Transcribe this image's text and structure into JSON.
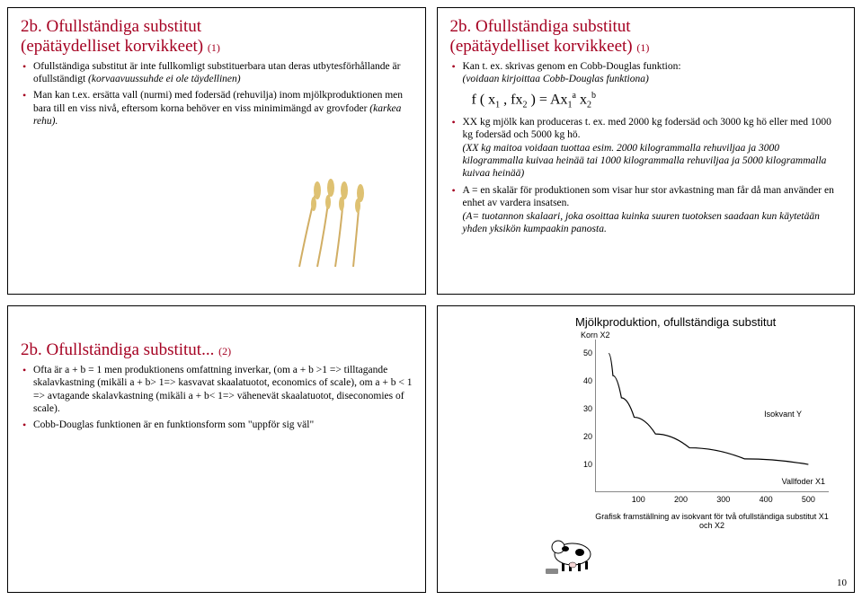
{
  "slide1": {
    "title_main": "2b. Ofullständiga substitut",
    "title_paren": "(epätäydelliset korvikkeet)",
    "title_num": "(1)",
    "b1": "Ofullständiga substitut är inte fullkomligt substituerbara utan deras utbytesförhållande är ofullständigt ",
    "b1_fi": "(korvaavuussuhde ei ole täydellinen)",
    "b2": "Man kan t.ex. ersätta vall (nurmi) med fodersäd (rehuvilja) inom mjölkproduktionen men bara till en viss nivå, eftersom korna behöver en viss minimimängd av grovfoder ",
    "b2_fi": "(karkea rehu)."
  },
  "slide2": {
    "title_main": "2b. Ofullständiga substitut",
    "title_paren": "(epätäydelliset korvikkeet)",
    "title_num": "(1)",
    "b1": "Kan t. ex. skrivas genom en Cobb-Douglas funktion:",
    "b1_fi": "(voidaan kirjoittaa Cobb-Douglas funktiona)",
    "formula_lhs": "f ( x",
    "formula_sub1": "1",
    "formula_mid": " , fx",
    "formula_sub2": "2",
    "formula_eq": " ) = Ax",
    "formula_supA": "a",
    "formula_subA": "1",
    "formula_x2": " x",
    "formula_supB": "b",
    "formula_subB": "2",
    "b2": "XX kg mjölk kan produceras t. ex. med 2000 kg fodersäd och 3000 kg hö eller med 1000 kg fodersäd och 5000 kg hö.",
    "b2_fi": "(XX kg maitoa voidaan tuottaa esim. 2000 kilogrammalla rehuviljaa ja 3000 kilogrammalla kuivaa heinää tai 1000 kilogrammalla rehuviljaa ja 5000 kilogrammalla kuivaa heinää)",
    "b3": "A = en skalär för produktionen som visar hur stor avkastning man får då man använder en enhet av vardera insatsen.",
    "b3_fi": "(A= tuotannon skalaari, joka osoittaa kuinka suuren tuotoksen saadaan kun käytetään yhden yksikön kumpaakin panosta."
  },
  "slide3": {
    "title_main": "2b. Ofullständiga substitut...",
    "title_num": "(2)",
    "b1": "Ofta är a + b = 1 men produktionens omfattning inverkar, (om a + b >1 => tilltagande skalavkastning (mikäli a + b> 1=> kasvavat skaalatuotot, economics of scale), om a + b < 1 => avtagande skalavkastning (mikäli a + b< 1=> vähenevät skaalatuotot, diseconomies of scale).",
    "b2": "Cobb-Douglas funktionen är en funktionsform som \"uppför sig väl\""
  },
  "slide4": {
    "chart": {
      "type": "line",
      "title": "Mjölkproduktion, ofullständiga substitut",
      "subtitle": "Korn  X2",
      "ylabel": "",
      "xlabel": "Vallfoder X1",
      "iso_label": "Isokvant Y",
      "y_ticks": [
        10,
        20,
        30,
        40,
        50
      ],
      "x_ticks": [
        100,
        200,
        300,
        400,
        500
      ],
      "ylim": [
        0,
        55
      ],
      "xlim": [
        0,
        550
      ],
      "curve_points": [
        [
          30,
          50
        ],
        [
          40,
          42
        ],
        [
          60,
          34
        ],
        [
          90,
          27
        ],
        [
          140,
          21
        ],
        [
          220,
          16
        ],
        [
          350,
          12
        ],
        [
          500,
          10
        ]
      ],
      "curve_color": "#000000",
      "axis_color": "#888888",
      "caption": "Grafisk framställning av isokvant för två ofullständiga substitut X1 och X2"
    },
    "pagenum": "10"
  },
  "colors": {
    "heading": "#a50021",
    "text": "#000000",
    "border": "#000000"
  }
}
